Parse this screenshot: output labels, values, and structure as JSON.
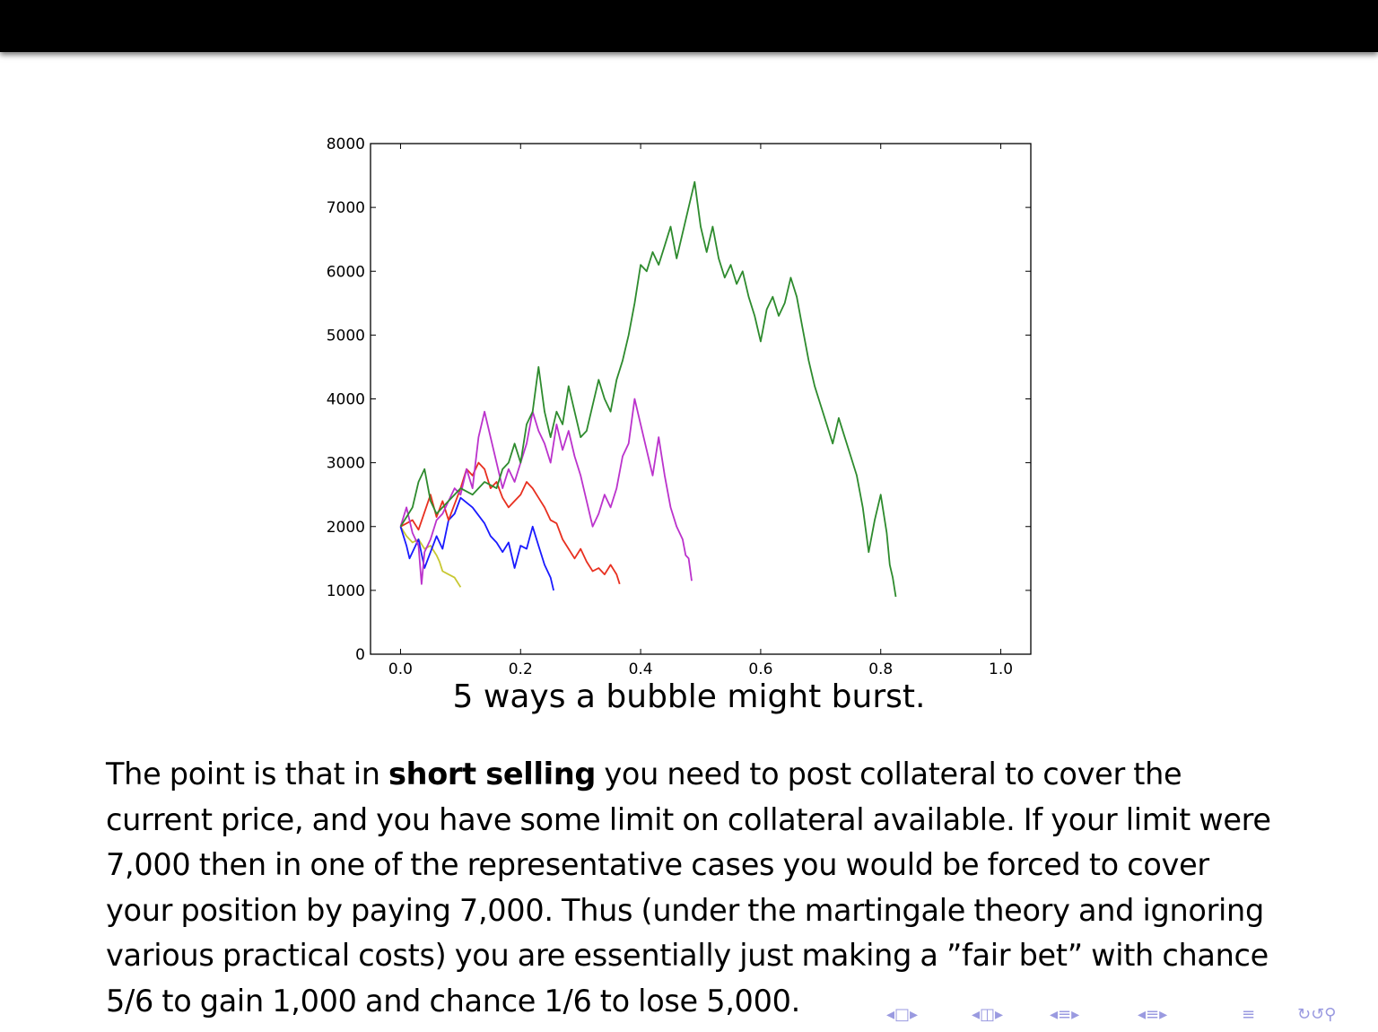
{
  "caption": "5 ways a bubble might burst.",
  "paragraph": {
    "before_bold": "The point is that in ",
    "bold": "short selling",
    "after_bold": " you need to post collateral to cover the current price, and you have some limit on collateral available. If your limit were 7,000 then in one of the representative cases you would be forced to cover your position by paying 7,000. Thus (under the martingale theory and ignoring various practical costs) you are essentially just making a ”fair bet” with chance 5/6 to gain 1,000 and chance 1/6 to lose 5,000."
  },
  "colors": {
    "blue": "#1a1aff",
    "green": "#2e8b2e",
    "red": "#e83020",
    "magenta": "#bb33cc",
    "yellow": "#c8c832"
  },
  "chart_data": {
    "type": "line",
    "title": "",
    "xlabel": "",
    "ylabel": "",
    "xlim": [
      -0.05,
      1.05
    ],
    "ylim": [
      0,
      8000
    ],
    "xticks": [
      "0.0",
      "0.2",
      "0.4",
      "0.6",
      "0.8",
      "1.0"
    ],
    "yticks": [
      "0",
      "1000",
      "2000",
      "3000",
      "4000",
      "5000",
      "6000",
      "7000",
      "8000"
    ],
    "grid": false,
    "series": [
      {
        "color": "#c8c832",
        "points": [
          [
            0,
            2000
          ],
          [
            0.01,
            1850
          ],
          [
            0.02,
            1750
          ],
          [
            0.03,
            1800
          ],
          [
            0.04,
            1650
          ],
          [
            0.05,
            1700
          ],
          [
            0.06,
            1550
          ],
          [
            0.065,
            1450
          ],
          [
            0.07,
            1300
          ],
          [
            0.08,
            1250
          ],
          [
            0.09,
            1200
          ],
          [
            0.1,
            1050
          ]
        ]
      },
      {
        "color": "#1a1aff",
        "points": [
          [
            0,
            2000
          ],
          [
            0.01,
            1700
          ],
          [
            0.015,
            1500
          ],
          [
            0.03,
            1800
          ],
          [
            0.04,
            1350
          ],
          [
            0.05,
            1600
          ],
          [
            0.06,
            1850
          ],
          [
            0.07,
            1650
          ],
          [
            0.08,
            2100
          ],
          [
            0.09,
            2200
          ],
          [
            0.1,
            2450
          ],
          [
            0.12,
            2300
          ],
          [
            0.14,
            2050
          ],
          [
            0.15,
            1850
          ],
          [
            0.16,
            1750
          ],
          [
            0.17,
            1600
          ],
          [
            0.18,
            1750
          ],
          [
            0.19,
            1350
          ],
          [
            0.2,
            1700
          ],
          [
            0.21,
            1650
          ],
          [
            0.22,
            2000
          ],
          [
            0.23,
            1700
          ],
          [
            0.24,
            1400
          ],
          [
            0.25,
            1200
          ],
          [
            0.255,
            1000
          ]
        ]
      },
      {
        "color": "#e83020",
        "points": [
          [
            0,
            2000
          ],
          [
            0.02,
            2100
          ],
          [
            0.03,
            1950
          ],
          [
            0.05,
            2500
          ],
          [
            0.06,
            2150
          ],
          [
            0.07,
            2400
          ],
          [
            0.08,
            2100
          ],
          [
            0.1,
            2600
          ],
          [
            0.11,
            2900
          ],
          [
            0.12,
            2800
          ],
          [
            0.13,
            3000
          ],
          [
            0.14,
            2900
          ],
          [
            0.15,
            2600
          ],
          [
            0.16,
            2700
          ],
          [
            0.17,
            2450
          ],
          [
            0.18,
            2300
          ],
          [
            0.19,
            2400
          ],
          [
            0.2,
            2500
          ],
          [
            0.21,
            2700
          ],
          [
            0.22,
            2600
          ],
          [
            0.23,
            2450
          ],
          [
            0.24,
            2300
          ],
          [
            0.25,
            2100
          ],
          [
            0.26,
            2050
          ],
          [
            0.27,
            1800
          ],
          [
            0.28,
            1650
          ],
          [
            0.29,
            1500
          ],
          [
            0.3,
            1650
          ],
          [
            0.31,
            1450
          ],
          [
            0.32,
            1300
          ],
          [
            0.33,
            1350
          ],
          [
            0.34,
            1250
          ],
          [
            0.35,
            1400
          ],
          [
            0.36,
            1250
          ],
          [
            0.365,
            1100
          ]
        ]
      },
      {
        "color": "#bb33cc",
        "points": [
          [
            0,
            2000
          ],
          [
            0.01,
            2300
          ],
          [
            0.02,
            1900
          ],
          [
            0.03,
            1700
          ],
          [
            0.035,
            1100
          ],
          [
            0.04,
            1600
          ],
          [
            0.05,
            1800
          ],
          [
            0.06,
            2100
          ],
          [
            0.07,
            2200
          ],
          [
            0.08,
            2400
          ],
          [
            0.09,
            2600
          ],
          [
            0.1,
            2500
          ],
          [
            0.11,
            2900
          ],
          [
            0.12,
            2600
          ],
          [
            0.13,
            3400
          ],
          [
            0.14,
            3800
          ],
          [
            0.15,
            3400
          ],
          [
            0.16,
            3000
          ],
          [
            0.17,
            2600
          ],
          [
            0.18,
            2900
          ],
          [
            0.19,
            2700
          ],
          [
            0.2,
            3000
          ],
          [
            0.21,
            3300
          ],
          [
            0.22,
            3800
          ],
          [
            0.23,
            3500
          ],
          [
            0.24,
            3300
          ],
          [
            0.25,
            3000
          ],
          [
            0.26,
            3600
          ],
          [
            0.27,
            3200
          ],
          [
            0.28,
            3500
          ],
          [
            0.29,
            3100
          ],
          [
            0.3,
            2800
          ],
          [
            0.31,
            2400
          ],
          [
            0.32,
            2000
          ],
          [
            0.33,
            2200
          ],
          [
            0.34,
            2500
          ],
          [
            0.35,
            2300
          ],
          [
            0.36,
            2600
          ],
          [
            0.37,
            3100
          ],
          [
            0.38,
            3300
          ],
          [
            0.39,
            4000
          ],
          [
            0.4,
            3600
          ],
          [
            0.41,
            3200
          ],
          [
            0.42,
            2800
          ],
          [
            0.43,
            3400
          ],
          [
            0.44,
            2800
          ],
          [
            0.45,
            2300
          ],
          [
            0.46,
            2000
          ],
          [
            0.47,
            1800
          ],
          [
            0.475,
            1550
          ],
          [
            0.48,
            1500
          ],
          [
            0.485,
            1150
          ]
        ]
      },
      {
        "color": "#2e8b2e",
        "points": [
          [
            0,
            2000
          ],
          [
            0.02,
            2300
          ],
          [
            0.03,
            2700
          ],
          [
            0.04,
            2900
          ],
          [
            0.05,
            2400
          ],
          [
            0.06,
            2200
          ],
          [
            0.08,
            2400
          ],
          [
            0.1,
            2600
          ],
          [
            0.12,
            2500
          ],
          [
            0.14,
            2700
          ],
          [
            0.16,
            2600
          ],
          [
            0.17,
            2900
          ],
          [
            0.18,
            3000
          ],
          [
            0.19,
            3300
          ],
          [
            0.2,
            3000
          ],
          [
            0.21,
            3600
          ],
          [
            0.22,
            3800
          ],
          [
            0.23,
            4500
          ],
          [
            0.24,
            3800
          ],
          [
            0.25,
            3400
          ],
          [
            0.26,
            3800
          ],
          [
            0.27,
            3600
          ],
          [
            0.28,
            4200
          ],
          [
            0.29,
            3800
          ],
          [
            0.3,
            3400
          ],
          [
            0.31,
            3500
          ],
          [
            0.32,
            3900
          ],
          [
            0.33,
            4300
          ],
          [
            0.34,
            4000
          ],
          [
            0.35,
            3800
          ],
          [
            0.36,
            4300
          ],
          [
            0.37,
            4600
          ],
          [
            0.38,
            5000
          ],
          [
            0.39,
            5500
          ],
          [
            0.4,
            6100
          ],
          [
            0.41,
            6000
          ],
          [
            0.42,
            6300
          ],
          [
            0.43,
            6100
          ],
          [
            0.44,
            6400
          ],
          [
            0.45,
            6700
          ],
          [
            0.46,
            6200
          ],
          [
            0.47,
            6600
          ],
          [
            0.48,
            7000
          ],
          [
            0.49,
            7400
          ],
          [
            0.5,
            6700
          ],
          [
            0.51,
            6300
          ],
          [
            0.52,
            6700
          ],
          [
            0.53,
            6200
          ],
          [
            0.54,
            5900
          ],
          [
            0.55,
            6100
          ],
          [
            0.56,
            5800
          ],
          [
            0.57,
            6000
          ],
          [
            0.58,
            5600
          ],
          [
            0.59,
            5300
          ],
          [
            0.6,
            4900
          ],
          [
            0.61,
            5400
          ],
          [
            0.62,
            5600
          ],
          [
            0.63,
            5300
          ],
          [
            0.64,
            5500
          ],
          [
            0.65,
            5900
          ],
          [
            0.66,
            5600
          ],
          [
            0.67,
            5100
          ],
          [
            0.68,
            4600
          ],
          [
            0.69,
            4200
          ],
          [
            0.7,
            3900
          ],
          [
            0.71,
            3600
          ],
          [
            0.72,
            3300
          ],
          [
            0.73,
            3700
          ],
          [
            0.74,
            3400
          ],
          [
            0.75,
            3100
          ],
          [
            0.76,
            2800
          ],
          [
            0.77,
            2300
          ],
          [
            0.78,
            1600
          ],
          [
            0.79,
            2100
          ],
          [
            0.8,
            2500
          ],
          [
            0.81,
            1900
          ],
          [
            0.815,
            1400
          ],
          [
            0.82,
            1200
          ],
          [
            0.825,
            900
          ]
        ]
      }
    ]
  }
}
